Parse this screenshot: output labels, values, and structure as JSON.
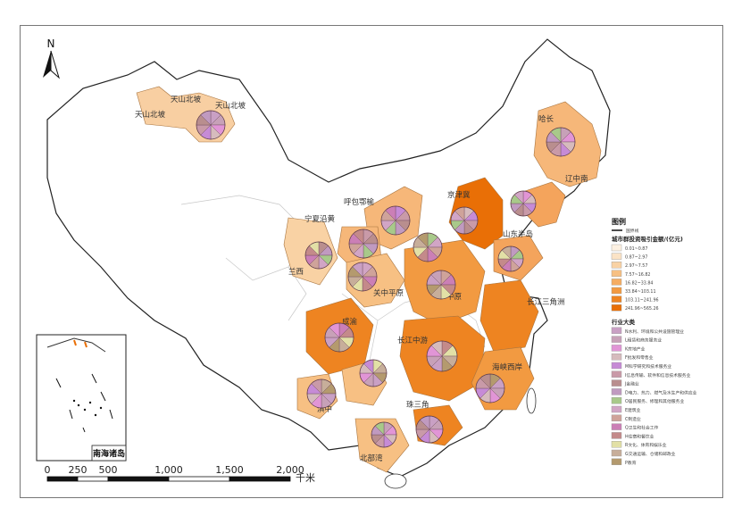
{
  "north_label": "N",
  "region_labels": [
    "天山北坡",
    "天山北坡",
    "天山北坡",
    "哈长",
    "辽中南",
    "京津冀",
    "呼包鄂榆",
    "宁夏沿黄",
    "兰西",
    "山东半岛",
    "关中平原",
    "中原",
    "长江三角洲",
    "成渝",
    "长江中游",
    "海峡西岸",
    "黔中",
    "滇中",
    "珠三角",
    "北部湾"
  ],
  "legend": {
    "title": "图例",
    "boundary_label": "国界线",
    "amount_title": "城市群投资吸引金额/(亿元)",
    "amount_colors": [
      "#fdf1e2",
      "#fbe3c6",
      "#f9d2a4",
      "#f7c083",
      "#f5ad62",
      "#f29a41",
      "#ee8421",
      "#e96f06"
    ],
    "amount_ranges": [
      "0.01~0.87",
      "0.87~2.97",
      "2.97~7.57",
      "7.57~16.82",
      "16.82~33.84",
      "33.84~103.11",
      "103.11~241.96",
      "241.96~565.26"
    ],
    "industry_title": "行业大类",
    "industry_colors": [
      "#c9a0c4",
      "#c7a1b8",
      "#e195d6",
      "#d6bbbd",
      "#c68bd6",
      "#c99aa8",
      "#b98e8e",
      "#c09ac0",
      "#a8c98a",
      "#d1a5c5",
      "#cfa39a",
      "#cb7fb6",
      "#c48a8a",
      "#e2e0a6",
      "#c7ae9a",
      "#b49a6e"
    ],
    "industry_labels": [
      "N水利、环境和公共设施管理业",
      "L租赁和商务服务业",
      "K房地产业",
      "F批发和零售业",
      "M科学研究和技术服务业",
      "I信息传输、软件和信息技术服务业",
      "J金融业",
      "D电力、热力、燃气及水生产和供应业",
      "O居民服务、修理和其他服务业",
      "E建筑业",
      "C制造业",
      "Q卫生和社会工作",
      "H住宿和餐饮业",
      "R文化、体育和娱乐业",
      "G交通运输、仓储和邮政业",
      "P教育"
    ]
  },
  "scale": {
    "ticks": [
      "0",
      "250",
      "500",
      "1,000",
      "1,500",
      "2,000"
    ],
    "unit": "千米"
  },
  "inset_label": "南海诸岛"
}
